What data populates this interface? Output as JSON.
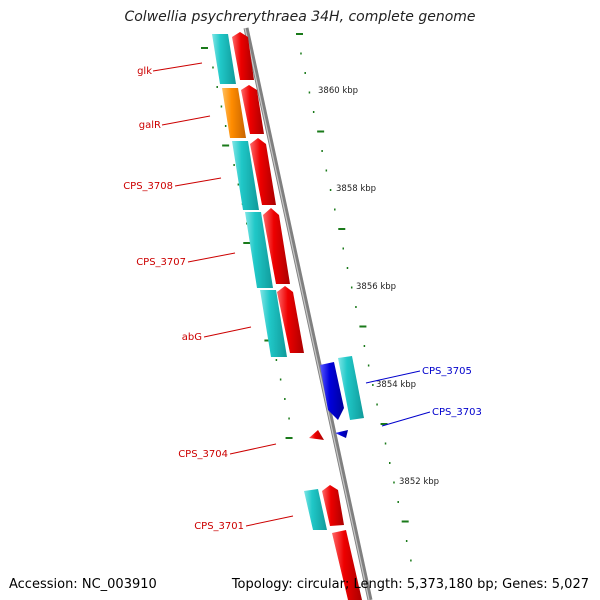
{
  "title": "Colwellia psychrerythraea 34H, complete genome",
  "footer": {
    "accession_label": "Accession:",
    "accession": "NC_003910",
    "topology_label": "Topology:",
    "topology": "circular",
    "length_label": "Length:",
    "length": "5,373,180 bp",
    "genes_label": "Genes:",
    "genes": "5,027"
  },
  "colors": {
    "backbone": "#909090",
    "forward": "#ee0000",
    "reverse": "#20c8c8",
    "regulator": "#ff8c00",
    "selected": "#0000dd",
    "tick": "#1a7a1a",
    "label_default": "#cc0000",
    "label_selected": "#0000cc"
  },
  "scale_ticks": [
    "3860 kbp",
    "3858 kbp",
    "3856 kbp",
    "3854 kbp",
    "3852 kbp"
  ],
  "gene_labels": [
    {
      "text": "glk",
      "color": "#cc0000"
    },
    {
      "text": "galR",
      "color": "#cc0000"
    },
    {
      "text": "CPS_3708",
      "color": "#cc0000"
    },
    {
      "text": "CPS_3707",
      "color": "#cc0000"
    },
    {
      "text": "abG",
      "color": "#cc0000"
    },
    {
      "text": "CPS_3705",
      "color": "#0000cc"
    },
    {
      "text": "CPS_3703",
      "color": "#0000cc"
    },
    {
      "text": "CPS_3704",
      "color": "#cc0000"
    },
    {
      "text": "CPS_3701",
      "color": "#cc0000"
    }
  ]
}
